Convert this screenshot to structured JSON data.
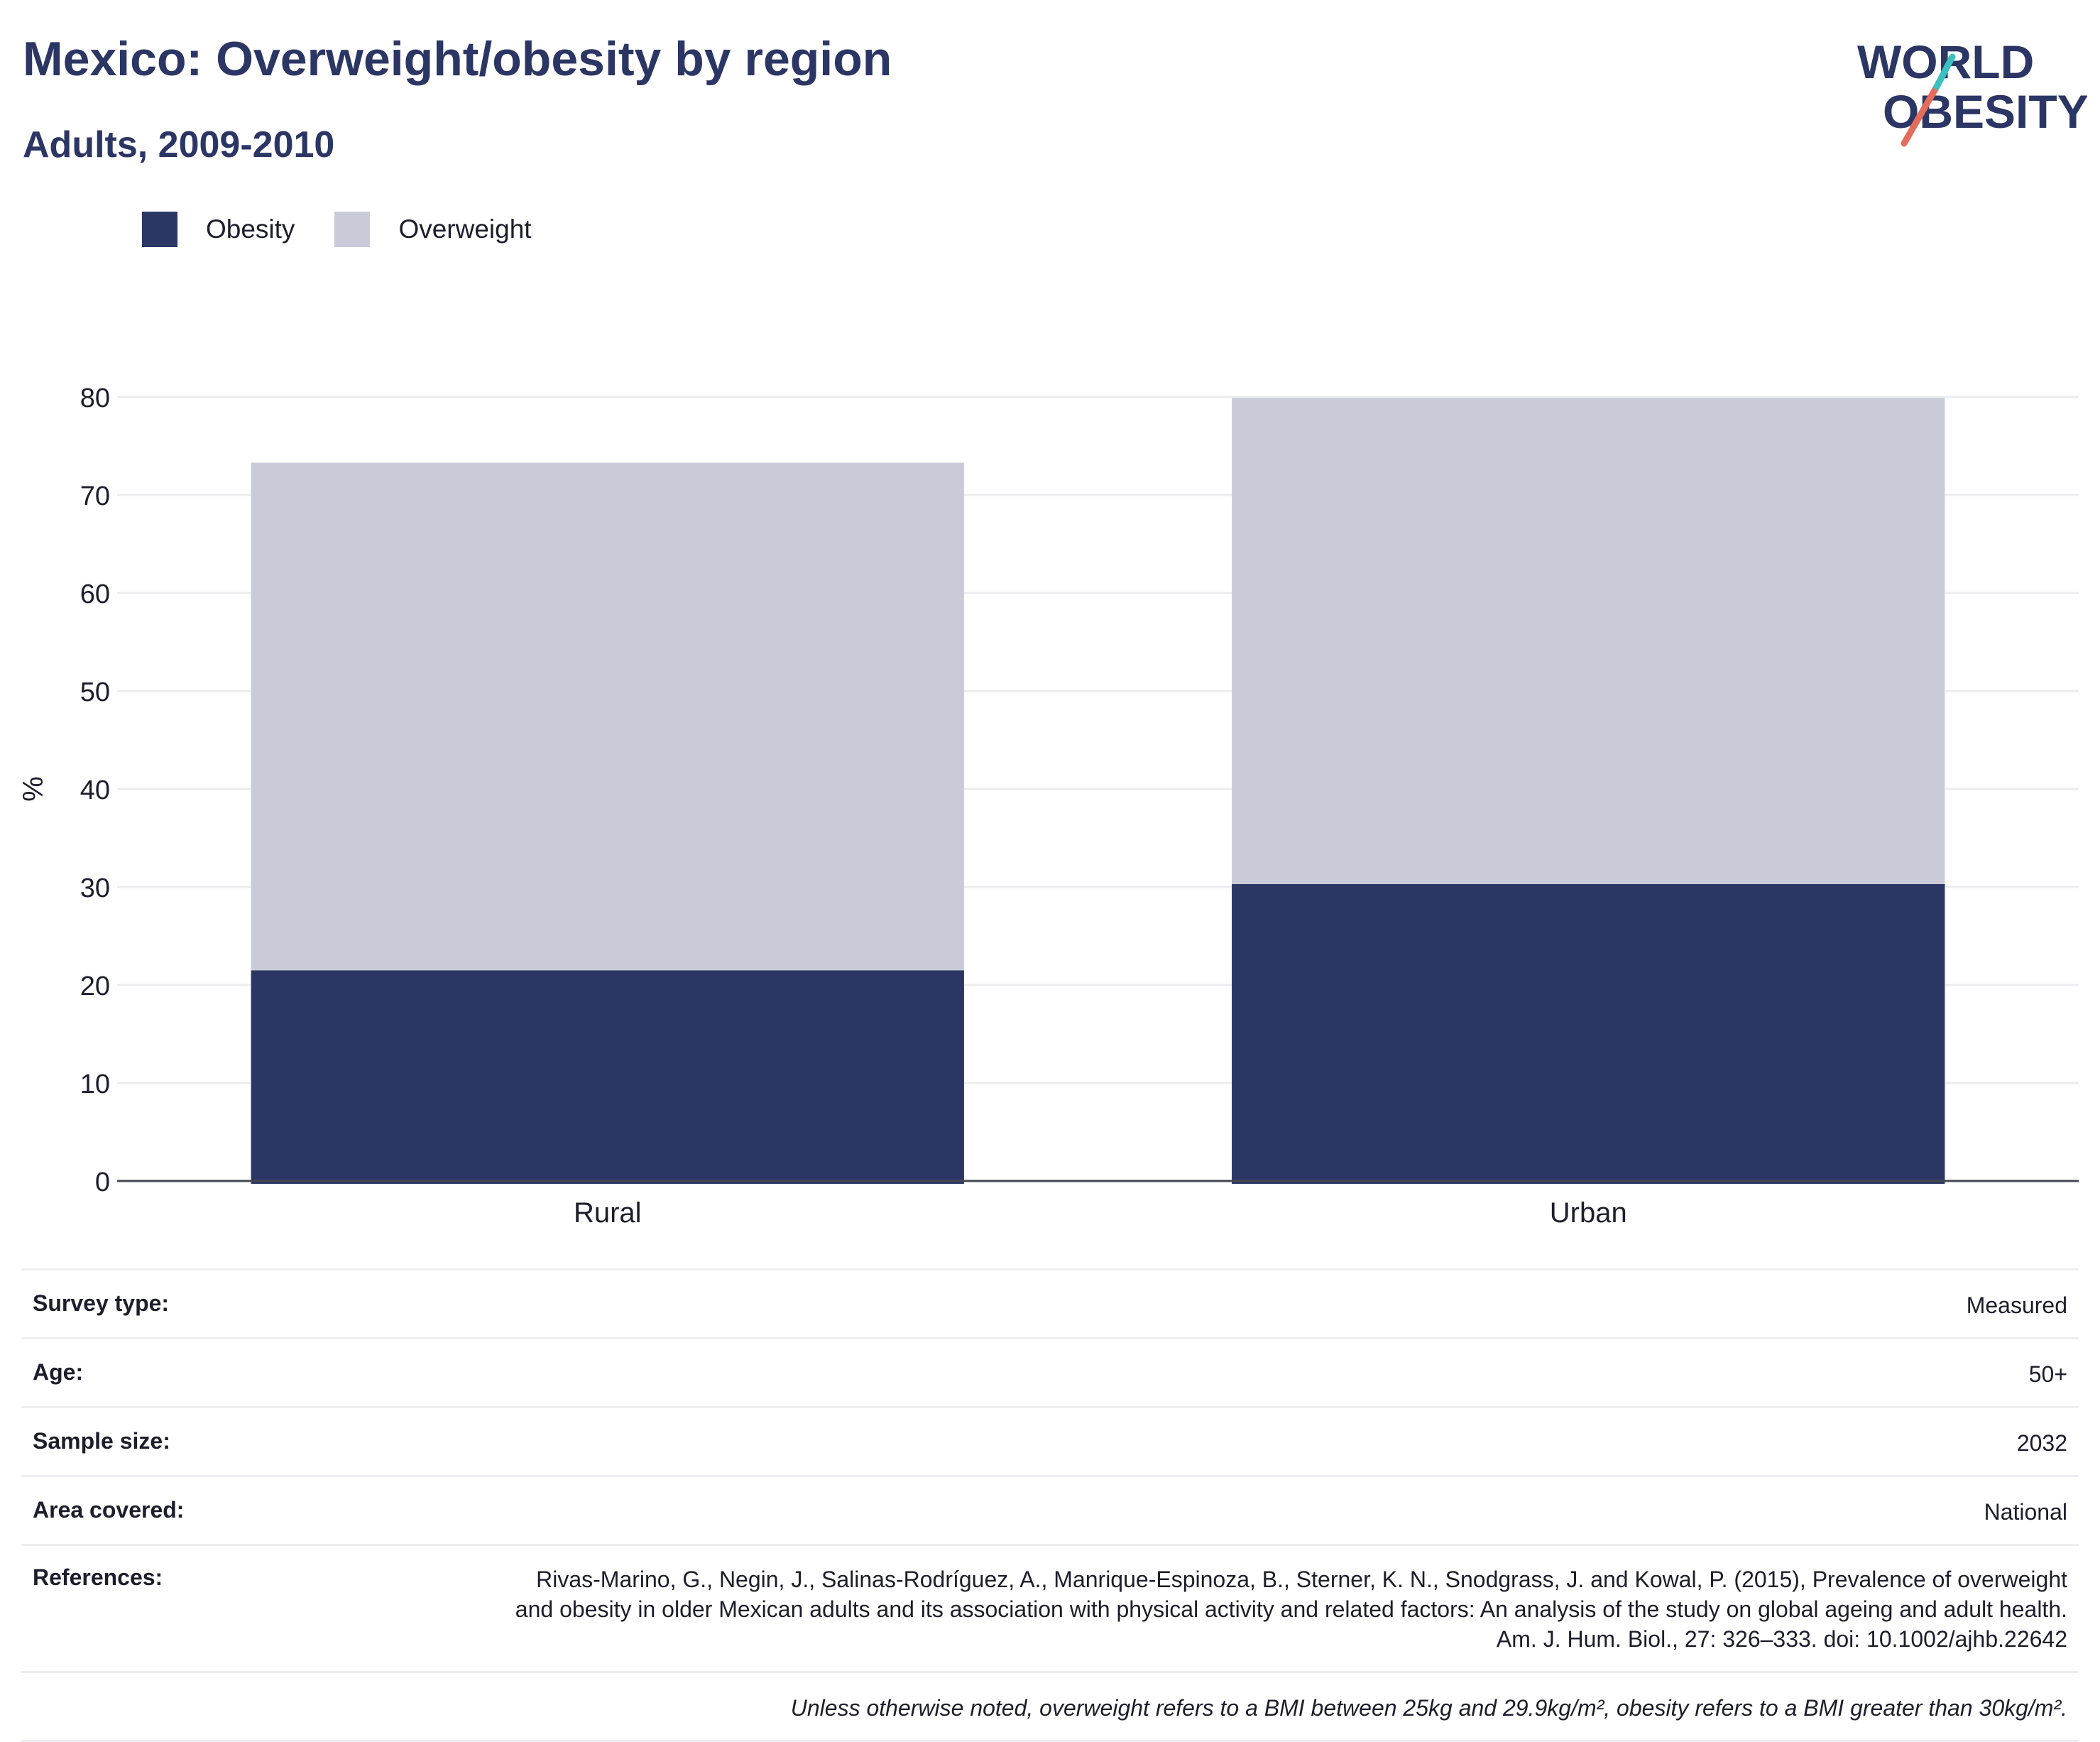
{
  "header": {
    "title": "Mexico: Overweight/obesity by region",
    "subtitle": "Adults, 2009-2010",
    "logo": {
      "line1": "WORLD",
      "line2": "OBESITY",
      "icon": "world-obesity-logo"
    }
  },
  "legend": [
    {
      "label": "Obesity",
      "color": "#2b3664"
    },
    {
      "label": "Overweight",
      "color": "#c9ccd8"
    }
  ],
  "chart_data": {
    "type": "bar",
    "stacked": true,
    "categories": [
      "Rural",
      "Urban"
    ],
    "series": [
      {
        "name": "Obesity",
        "color": "#2b3664",
        "values": [
          21.5,
          30.3
        ]
      },
      {
        "name": "Overweight",
        "color": "#c9ccd8",
        "values": [
          51.8,
          49.6
        ]
      }
    ],
    "ylabel": "%",
    "ylim": [
      0,
      80
    ],
    "yticks": [
      0,
      10,
      20,
      30,
      40,
      50,
      60,
      70,
      80
    ],
    "grid": true,
    "legend_position": "top-left"
  },
  "meta": {
    "rows": [
      {
        "label": "Survey type:",
        "value": "Measured"
      },
      {
        "label": "Age:",
        "value": "50+"
      },
      {
        "label": "Sample size:",
        "value": "2032"
      },
      {
        "label": "Area covered:",
        "value": "National"
      },
      {
        "label": "References:",
        "value": "Rivas-Marino, G., Negin, J., Salinas-Rodríguez, A., Manrique-Espinoza, B., Sterner, K. N., Snodgrass, J. and Kowal, P. (2015), Prevalence of overweight and obesity in older Mexican adults and its association with physical activity and related factors: An analysis of the study on global ageing and adult health. Am. J. Hum. Biol., 27: 326–333. doi: 10.1002/ajhb.22642"
      }
    ],
    "note": "Unless otherwise noted, overweight refers to a BMI between 25kg and 29.9kg/m², obesity refers to a BMI greater than 30kg/m²."
  }
}
